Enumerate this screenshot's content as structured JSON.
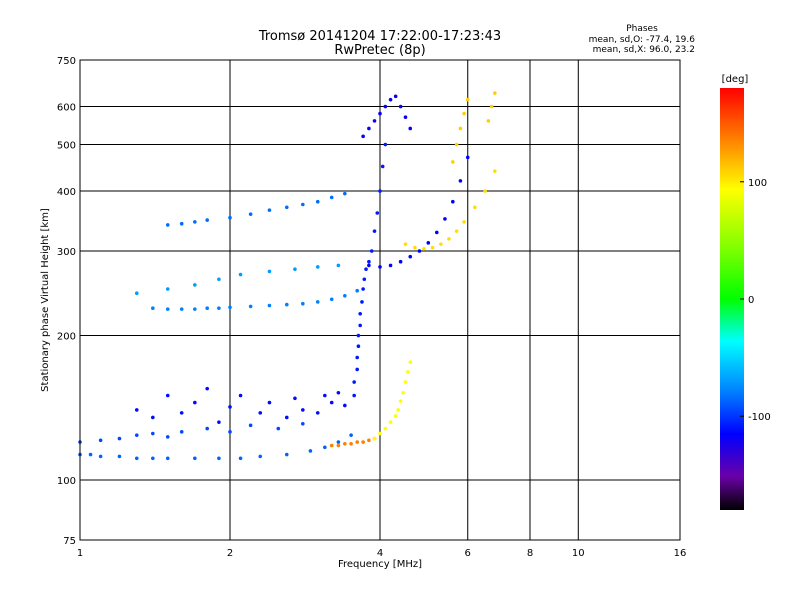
{
  "chart_data": {
    "type": "scatter",
    "title": "Tromsø 20141204 17:22:00-17:23:43",
    "subtitle": "RwPretec (8p)",
    "xlabel": "Frequency [MHz]",
    "ylabel": "Stationary phase Virtual Height [km]",
    "x_scale": "log",
    "y_scale": "log",
    "xlim": [
      1,
      16
    ],
    "ylim": [
      75,
      750
    ],
    "x_ticks": [
      "1",
      "2",
      "4",
      "6",
      "8",
      "10",
      "16"
    ],
    "x_tick_values": [
      1,
      2,
      4,
      6,
      8,
      10,
      16
    ],
    "x_grid_values": [
      1,
      2,
      4,
      6,
      8,
      10,
      16
    ],
    "y_ticks": [
      "75",
      "100",
      "200",
      "300",
      "400",
      "500",
      "600",
      "750"
    ],
    "y_tick_values": [
      75,
      100,
      200,
      300,
      400,
      500,
      600,
      750
    ],
    "y_grid_values": [
      100,
      200,
      300,
      400,
      500,
      600
    ],
    "grid": true,
    "stats": {
      "heading": "Phases",
      "line_o": "mean, sd,O: -77.4, 19.6",
      "line_x": "mean, sd,X:  96.0, 23.2"
    },
    "colorbar": {
      "label": "[deg]",
      "range": [
        -180,
        180
      ],
      "ticks": [
        "100",
        "0",
        "-100"
      ],
      "tick_values": [
        100,
        0,
        -100
      ]
    },
    "traces": [
      {
        "name": "",
        "phase": -88,
        "points": [
          [
            1.0,
            113
          ],
          [
            1.05,
            113
          ],
          [
            1.1,
            112
          ],
          [
            1.2,
            112
          ],
          [
            1.3,
            111
          ],
          [
            1.4,
            111
          ],
          [
            1.5,
            111
          ],
          [
            1.7,
            111
          ],
          [
            1.9,
            111
          ],
          [
            2.1,
            111
          ],
          [
            2.3,
            112
          ],
          [
            2.6,
            113
          ],
          [
            2.9,
            115
          ],
          [
            3.1,
            117
          ],
          [
            3.3,
            120
          ],
          [
            3.5,
            124
          ]
        ]
      },
      {
        "name": "",
        "phase": -95,
        "points": [
          [
            1.0,
            120
          ],
          [
            1.1,
            121
          ],
          [
            1.2,
            122
          ],
          [
            1.3,
            124
          ],
          [
            1.4,
            125
          ],
          [
            1.5,
            123
          ],
          [
            1.6,
            126
          ],
          [
            1.8,
            128
          ],
          [
            2.0,
            126
          ],
          [
            2.2,
            130
          ],
          [
            2.5,
            128
          ],
          [
            2.8,
            131
          ]
        ]
      },
      {
        "name": "",
        "phase": -112,
        "points": [
          [
            1.3,
            140
          ],
          [
            1.4,
            135
          ],
          [
            1.5,
            150
          ],
          [
            1.6,
            138
          ],
          [
            1.7,
            145
          ],
          [
            1.8,
            155
          ],
          [
            1.9,
            132
          ],
          [
            2.0,
            142
          ],
          [
            2.1,
            150
          ],
          [
            2.3,
            138
          ],
          [
            2.4,
            145
          ],
          [
            2.6,
            135
          ],
          [
            2.7,
            148
          ],
          [
            2.8,
            140
          ],
          [
            3.0,
            138
          ],
          [
            3.1,
            150
          ],
          [
            3.2,
            145
          ],
          [
            3.3,
            152
          ],
          [
            3.4,
            143
          ]
        ]
      },
      {
        "name": "",
        "phase": 135,
        "points": [
          [
            3.2,
            118
          ],
          [
            3.3,
            118
          ],
          [
            3.4,
            119
          ],
          [
            3.5,
            119
          ],
          [
            3.6,
            120
          ],
          [
            3.7,
            120
          ],
          [
            3.8,
            121
          ],
          [
            3.9,
            122
          ]
        ]
      },
      {
        "name": "",
        "phase": 95,
        "points": [
          [
            3.9,
            122
          ],
          [
            4.0,
            125
          ],
          [
            4.1,
            128
          ],
          [
            4.2,
            132
          ],
          [
            4.3,
            136
          ],
          [
            4.35,
            140
          ],
          [
            4.4,
            146
          ],
          [
            4.45,
            152
          ],
          [
            4.5,
            160
          ],
          [
            4.55,
            168
          ],
          [
            4.6,
            176
          ]
        ]
      },
      {
        "name": "",
        "phase": -108,
        "points": [
          [
            3.55,
            150
          ],
          [
            3.55,
            160
          ],
          [
            3.6,
            170
          ],
          [
            3.6,
            180
          ],
          [
            3.62,
            190
          ],
          [
            3.62,
            200
          ],
          [
            3.65,
            210
          ],
          [
            3.65,
            222
          ],
          [
            3.68,
            235
          ],
          [
            3.7,
            250
          ],
          [
            3.72,
            262
          ],
          [
            3.75,
            275
          ],
          [
            3.8,
            285
          ],
          [
            3.85,
            300
          ],
          [
            3.9,
            330
          ],
          [
            3.95,
            360
          ],
          [
            4.0,
            400
          ],
          [
            4.05,
            450
          ],
          [
            4.1,
            500
          ]
        ]
      },
      {
        "name": "",
        "phase": -80,
        "points": [
          [
            1.4,
            228
          ],
          [
            1.5,
            227
          ],
          [
            1.6,
            227
          ],
          [
            1.7,
            227
          ],
          [
            1.8,
            228
          ],
          [
            1.9,
            228
          ],
          [
            2.0,
            229
          ],
          [
            2.2,
            230
          ],
          [
            2.4,
            231
          ],
          [
            2.6,
            232
          ],
          [
            2.8,
            233
          ],
          [
            3.0,
            235
          ],
          [
            3.2,
            238
          ],
          [
            3.4,
            242
          ],
          [
            3.6,
            248
          ]
        ]
      },
      {
        "name": "",
        "phase": -70,
        "points": [
          [
            1.3,
            245
          ],
          [
            1.5,
            250
          ],
          [
            1.7,
            255
          ],
          [
            1.9,
            262
          ],
          [
            2.1,
            268
          ],
          [
            2.4,
            272
          ],
          [
            2.7,
            275
          ],
          [
            3.0,
            278
          ],
          [
            3.3,
            280
          ]
        ]
      },
      {
        "name": "",
        "phase": -85,
        "points": [
          [
            1.5,
            340
          ],
          [
            1.6,
            342
          ],
          [
            1.7,
            345
          ],
          [
            1.8,
            348
          ],
          [
            2.0,
            352
          ],
          [
            2.2,
            358
          ],
          [
            2.4,
            365
          ],
          [
            2.6,
            370
          ],
          [
            2.8,
            375
          ],
          [
            3.0,
            380
          ],
          [
            3.2,
            388
          ],
          [
            3.4,
            395
          ]
        ]
      },
      {
        "name": "",
        "phase": -115,
        "points": [
          [
            3.8,
            280
          ],
          [
            4.0,
            278
          ],
          [
            4.2,
            280
          ],
          [
            4.4,
            285
          ],
          [
            4.6,
            292
          ],
          [
            4.8,
            300
          ],
          [
            5.0,
            312
          ],
          [
            5.2,
            328
          ],
          [
            5.4,
            350
          ],
          [
            5.6,
            380
          ],
          [
            5.8,
            420
          ],
          [
            6.0,
            470
          ]
        ]
      },
      {
        "name": "",
        "phase": -118,
        "points": [
          [
            3.7,
            520
          ],
          [
            3.8,
            540
          ],
          [
            3.9,
            560
          ],
          [
            4.0,
            580
          ],
          [
            4.1,
            600
          ],
          [
            4.2,
            620
          ],
          [
            4.3,
            630
          ],
          [
            4.4,
            600
          ],
          [
            4.5,
            570
          ],
          [
            4.6,
            540
          ]
        ]
      },
      {
        "name": "",
        "phase": 105,
        "points": [
          [
            4.5,
            310
          ],
          [
            4.7,
            305
          ],
          [
            4.9,
            303
          ],
          [
            5.1,
            305
          ],
          [
            5.3,
            310
          ],
          [
            5.5,
            318
          ],
          [
            5.7,
            330
          ],
          [
            5.9,
            345
          ],
          [
            6.2,
            370
          ],
          [
            6.5,
            400
          ],
          [
            6.8,
            440
          ]
        ]
      },
      {
        "name": "",
        "phase": 110,
        "points": [
          [
            5.6,
            460
          ],
          [
            5.7,
            500
          ],
          [
            5.8,
            540
          ],
          [
            5.9,
            580
          ],
          [
            6.0,
            620
          ],
          [
            6.6,
            560
          ],
          [
            6.7,
            600
          ],
          [
            6.8,
            640
          ]
        ]
      }
    ]
  }
}
